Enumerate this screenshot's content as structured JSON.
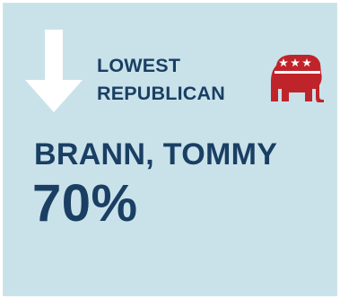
{
  "card": {
    "heading_line1": "LOWEST",
    "heading_line2": "REPUBLICAN",
    "name": "BRANN, TOMMY",
    "percent": "70%"
  },
  "icons": {
    "arrow": "arrow-down-icon",
    "party": "republican-elephant-icon"
  },
  "colors": {
    "background": "#c9e2ea",
    "text": "#1a3f63",
    "arrow": "#ffffff",
    "elephant": "#c0242b"
  }
}
